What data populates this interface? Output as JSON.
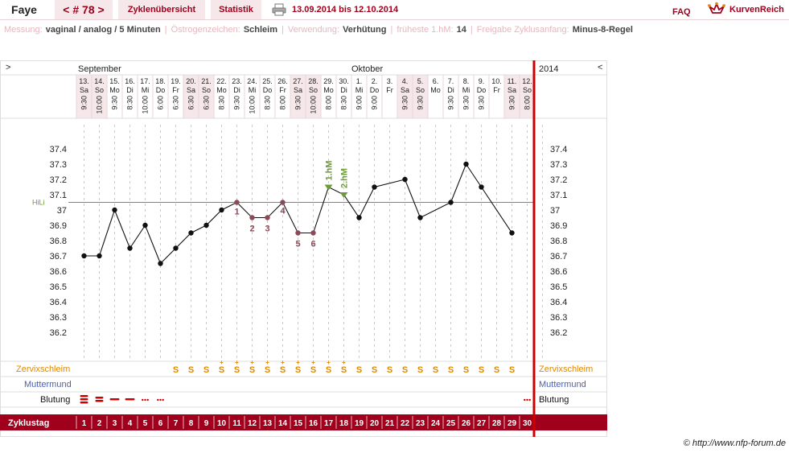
{
  "header": {
    "name": "Faye",
    "cycle": "< # 78 >",
    "tab_overview": "Zyklenübersicht",
    "tab_stats": "Statistik",
    "date_range": "13.09.2014 bis 12.10.2014",
    "faq": "FAQ",
    "logo": "KurvenReich"
  },
  "info": {
    "measurement_label": "Messung:",
    "measurement_value": "vaginal / analog / 5 Minuten",
    "estrogen_label": "Östrogenzeichen:",
    "estrogen_value": "Schleim",
    "usage_label": "Verwendung:",
    "usage_value": "Verhütung",
    "earliest_label": "früheste 1.hM:",
    "earliest_value": "14",
    "release_label": "Freigabe Zyklusanfang:",
    "release_value": "Minus-8-Regel"
  },
  "colors": {
    "brand": "#a0001c",
    "coverline": "#6e9a3a",
    "mucus": "#e08a00",
    "cervix": "#4a5fb0",
    "bleeding": "#cc0000",
    "column_pink": "#f6e8ea"
  },
  "chart_data": {
    "type": "line",
    "title": "",
    "xlabel": "",
    "ylabel": "",
    "ylim": [
      36.1,
      37.5
    ],
    "yticks": [
      "37.4",
      "37.3",
      "37.2",
      "37.1",
      "37",
      "36.9",
      "36.8",
      "36.7",
      "36.6",
      "36.5",
      "36.4",
      "36.3",
      "36.2"
    ],
    "ytick_values": [
      37.4,
      37.3,
      37.2,
      37.1,
      37.0,
      36.9,
      36.8,
      36.7,
      36.6,
      36.5,
      36.4,
      36.3,
      36.2
    ],
    "month_left": "September",
    "month_right": "Oktober",
    "year_label": "2014",
    "nav_left": ">",
    "nav_right": "<",
    "coverline_label": "HiLi",
    "coverline_value": 37.05,
    "days": [
      {
        "cd": "1",
        "date": "13.",
        "dow": "Sa",
        "time": "9:30",
        "temp": 36.7,
        "weekend": true
      },
      {
        "cd": "2",
        "date": "14.",
        "dow": "So",
        "time": "10:00",
        "temp": 36.7,
        "weekend": true
      },
      {
        "cd": "3",
        "date": "15.",
        "dow": "Mo",
        "time": "9:30",
        "temp": 37.0,
        "weekend": false
      },
      {
        "cd": "4",
        "date": "16.",
        "dow": "Di",
        "time": "8:30",
        "temp": 36.75,
        "weekend": false
      },
      {
        "cd": "5",
        "date": "17.",
        "dow": "Mi",
        "time": "10:00",
        "temp": 36.9,
        "weekend": false
      },
      {
        "cd": "6",
        "date": "18.",
        "dow": "Do",
        "time": "6:00",
        "temp": 36.65,
        "weekend": false
      },
      {
        "cd": "7",
        "date": "19.",
        "dow": "Fr",
        "time": "6:30",
        "temp": 36.75,
        "weekend": false
      },
      {
        "cd": "8",
        "date": "20.",
        "dow": "Sa",
        "time": "6:30",
        "temp": 36.85,
        "weekend": true
      },
      {
        "cd": "9",
        "date": "21.",
        "dow": "So",
        "time": "6:30",
        "temp": 36.9,
        "weekend": true
      },
      {
        "cd": "10",
        "date": "22.",
        "dow": "Mo",
        "time": "8:30",
        "temp": 37.0,
        "weekend": false
      },
      {
        "cd": "11",
        "date": "23.",
        "dow": "Di",
        "time": "9:30",
        "temp": 37.05,
        "weekend": false
      },
      {
        "cd": "12",
        "date": "24.",
        "dow": "Mi",
        "time": "10:00",
        "temp": 36.95,
        "weekend": false
      },
      {
        "cd": "13",
        "date": "25.",
        "dow": "Do",
        "time": "8:30",
        "temp": 36.95,
        "weekend": false
      },
      {
        "cd": "14",
        "date": "26.",
        "dow": "Fr",
        "time": "8:00",
        "temp": 37.05,
        "weekend": false
      },
      {
        "cd": "15",
        "date": "27.",
        "dow": "Sa",
        "time": "9:30",
        "temp": 36.85,
        "weekend": true
      },
      {
        "cd": "16",
        "date": "28.",
        "dow": "So",
        "time": "10:00",
        "temp": 36.85,
        "weekend": true
      },
      {
        "cd": "17",
        "date": "29.",
        "dow": "Mo",
        "time": "8:00",
        "temp": 37.15,
        "weekend": false
      },
      {
        "cd": "18",
        "date": "30.",
        "dow": "Di",
        "time": "8:30",
        "temp": 37.1,
        "weekend": false
      },
      {
        "cd": "19",
        "date": "1.",
        "dow": "Mi",
        "time": "9:00",
        "temp": 36.95,
        "weekend": false
      },
      {
        "cd": "20",
        "date": "2.",
        "dow": "Do",
        "time": "9:00",
        "temp": 37.15,
        "weekend": false
      },
      {
        "cd": "21",
        "date": "3.",
        "dow": "Fr",
        "time": "",
        "temp": null,
        "weekend": false
      },
      {
        "cd": "22",
        "date": "4.",
        "dow": "Sa",
        "time": "9:30",
        "temp": 37.2,
        "weekend": true
      },
      {
        "cd": "23",
        "date": "5.",
        "dow": "So",
        "time": "9:30",
        "temp": 36.95,
        "weekend": true
      },
      {
        "cd": "24",
        "date": "6.",
        "dow": "Mo",
        "time": "",
        "temp": null,
        "weekend": false
      },
      {
        "cd": "25",
        "date": "7.",
        "dow": "Di",
        "time": "9:30",
        "temp": 37.05,
        "weekend": false
      },
      {
        "cd": "26",
        "date": "8.",
        "dow": "Mi",
        "time": "9:30",
        "temp": 37.3,
        "weekend": false
      },
      {
        "cd": "27",
        "date": "9.",
        "dow": "Do",
        "time": "9:30",
        "temp": 37.15,
        "weekend": false
      },
      {
        "cd": "28",
        "date": "10.",
        "dow": "Fr",
        "time": "",
        "temp": null,
        "weekend": false
      },
      {
        "cd": "29",
        "date": "11.",
        "dow": "Sa",
        "time": "9:30",
        "temp": 36.85,
        "weekend": true
      },
      {
        "cd": "30",
        "date": "12.",
        "dow": "So",
        "time": "8:00",
        "temp": null,
        "weekend": true
      }
    ],
    "low_labels": [
      {
        "day": 11,
        "label": "1",
        "pos": "below"
      },
      {
        "day": 12,
        "label": "2",
        "pos": "below"
      },
      {
        "day": 13,
        "label": "3",
        "pos": "below"
      },
      {
        "day": 14,
        "label": "4",
        "pos": "below"
      },
      {
        "day": 15,
        "label": "5",
        "pos": "below"
      },
      {
        "day": 16,
        "label": "6",
        "pos": "below"
      }
    ],
    "high_markers": [
      {
        "day": 17,
        "label": "1.hM"
      },
      {
        "day": 18,
        "label": "2.hM"
      }
    ],
    "mucus": [
      "",
      "",
      "",
      "",
      "",
      "",
      "S",
      "S",
      "S",
      "S+",
      "S+",
      "S+",
      "S+",
      "S+",
      "S+",
      "S+",
      "S+",
      "S+",
      "S",
      "S",
      "S",
      "S",
      "S",
      "S",
      "S",
      "S",
      "S",
      "S",
      "S",
      ""
    ],
    "bleeding": [
      3,
      2,
      1,
      1,
      3,
      3,
      0,
      0,
      0,
      0,
      0,
      0,
      0,
      0,
      0,
      0,
      0,
      0,
      0,
      0,
      0,
      0,
      0,
      0,
      0,
      0,
      0,
      0,
      0,
      3
    ],
    "rows": {
      "mucus_label": "Zervixschleim",
      "cervix_label": "Muttermund",
      "bleeding_label": "Blutung",
      "cycle_day_label": "Zyklustag"
    }
  },
  "copyright": "© http://www.nfp-forum.de"
}
